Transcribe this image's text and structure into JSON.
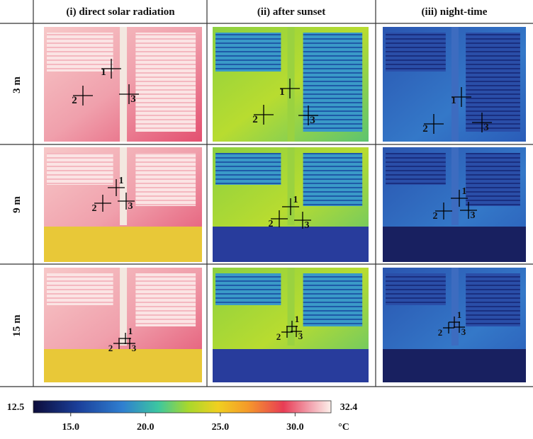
{
  "columns": [
    "(i) direct solar radiation",
    "(ii) after sunset",
    "(iii) night-time"
  ],
  "rows": [
    "3 m",
    "9 m",
    "15 m"
  ],
  "panels": [
    [
      {
        "points": [
          "1",
          "2",
          "3"
        ]
      },
      {
        "points": [
          "1",
          "2",
          "3"
        ]
      },
      {
        "points": [
          "1",
          "2",
          "3"
        ]
      }
    ],
    [
      {
        "points": [
          "1",
          "2",
          "3"
        ]
      },
      {
        "points": [
          "1",
          "2",
          "3"
        ]
      },
      {
        "points": [
          "1",
          "2",
          "3"
        ]
      }
    ],
    [
      {
        "points": [
          "1",
          "2",
          "3"
        ]
      },
      {
        "points": [
          "1",
          "2",
          "3"
        ]
      },
      {
        "points": [
          "1",
          "2",
          "3"
        ]
      }
    ]
  ],
  "colorbar": {
    "min": 12.5,
    "max": 32.4,
    "ticks": [
      {
        "value": 15,
        "label": "15.0"
      },
      {
        "value": 20,
        "label": "20.0"
      },
      {
        "value": 25,
        "label": "25.0"
      },
      {
        "value": 30,
        "label": "30.0"
      }
    ],
    "unit": "°C"
  }
}
